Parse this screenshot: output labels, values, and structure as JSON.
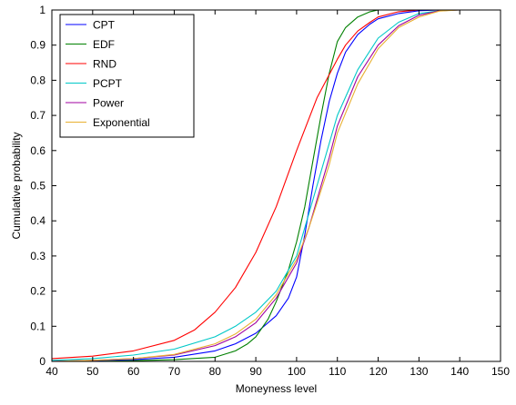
{
  "chart_data": {
    "type": "line",
    "xlabel": "Moneyness level",
    "ylabel": "Cumulative probability",
    "xlim": [
      40,
      150
    ],
    "ylim": [
      0,
      1
    ],
    "xticks": [
      40,
      50,
      60,
      70,
      80,
      90,
      100,
      110,
      120,
      130,
      140,
      150
    ],
    "yticks": [
      0,
      0.1,
      0.2,
      0.3,
      0.4,
      0.5,
      0.6,
      0.7,
      0.8,
      0.9,
      1
    ],
    "grid": false,
    "legend_position": "top-left",
    "series": [
      {
        "name": "CPT",
        "color": "#0000ff",
        "x": [
          40,
          50,
          60,
          70,
          80,
          85,
          90,
          95,
          98,
          100,
          102,
          104,
          106,
          108,
          110,
          112,
          115,
          118,
          120,
          125,
          130,
          135,
          140,
          150
        ],
        "y": [
          0.0,
          0.002,
          0.005,
          0.012,
          0.03,
          0.05,
          0.08,
          0.13,
          0.18,
          0.24,
          0.36,
          0.5,
          0.63,
          0.74,
          0.82,
          0.88,
          0.93,
          0.96,
          0.975,
          0.99,
          0.998,
          1.0,
          1.0,
          1.0
        ]
      },
      {
        "name": "EDF",
        "color": "#008000",
        "x": [
          40,
          50,
          60,
          70,
          80,
          85,
          88,
          90,
          93,
          95,
          98,
          100,
          102,
          104,
          106,
          108,
          110,
          112,
          115,
          118,
          120,
          125,
          130,
          140,
          150
        ],
        "y": [
          0.0,
          0.0,
          0.002,
          0.005,
          0.012,
          0.03,
          0.05,
          0.07,
          0.12,
          0.17,
          0.26,
          0.34,
          0.44,
          0.57,
          0.7,
          0.82,
          0.91,
          0.95,
          0.98,
          0.995,
          1.0,
          1.0,
          1.0,
          1.0,
          1.0
        ]
      },
      {
        "name": "RND",
        "color": "#ff0000",
        "x": [
          40,
          50,
          60,
          70,
          75,
          80,
          85,
          90,
          95,
          100,
          105,
          110,
          112,
          115,
          118,
          120,
          125,
          130,
          135,
          140,
          150
        ],
        "y": [
          0.008,
          0.015,
          0.03,
          0.06,
          0.09,
          0.14,
          0.21,
          0.31,
          0.44,
          0.6,
          0.75,
          0.86,
          0.9,
          0.94,
          0.965,
          0.98,
          0.995,
          1.0,
          1.0,
          1.0,
          1.0
        ]
      },
      {
        "name": "PCPT",
        "color": "#00c8c8",
        "x": [
          40,
          50,
          60,
          70,
          80,
          85,
          90,
          95,
          100,
          105,
          110,
          115,
          120,
          125,
          130,
          135,
          140,
          150
        ],
        "y": [
          0.003,
          0.008,
          0.018,
          0.035,
          0.07,
          0.1,
          0.14,
          0.2,
          0.3,
          0.5,
          0.7,
          0.83,
          0.92,
          0.965,
          0.99,
          0.998,
          1.0,
          1.0
        ]
      },
      {
        "name": "Power",
        "color": "#a000a0",
        "x": [
          40,
          50,
          60,
          70,
          80,
          85,
          90,
          95,
          100,
          103,
          105,
          108,
          110,
          115,
          120,
          125,
          130,
          135,
          140,
          150
        ],
        "y": [
          0.0,
          0.003,
          0.008,
          0.018,
          0.045,
          0.07,
          0.11,
          0.18,
          0.28,
          0.38,
          0.46,
          0.58,
          0.67,
          0.81,
          0.9,
          0.955,
          0.985,
          0.998,
          1.0,
          1.0
        ]
      },
      {
        "name": "Exponential",
        "color": "#e8b030",
        "x": [
          40,
          50,
          60,
          70,
          80,
          85,
          90,
          95,
          100,
          103,
          105,
          108,
          110,
          115,
          120,
          125,
          130,
          135,
          140,
          150
        ],
        "y": [
          0.0,
          0.003,
          0.008,
          0.02,
          0.05,
          0.078,
          0.12,
          0.19,
          0.29,
          0.38,
          0.45,
          0.56,
          0.65,
          0.79,
          0.89,
          0.95,
          0.98,
          0.997,
          1.0,
          1.0
        ]
      }
    ]
  }
}
